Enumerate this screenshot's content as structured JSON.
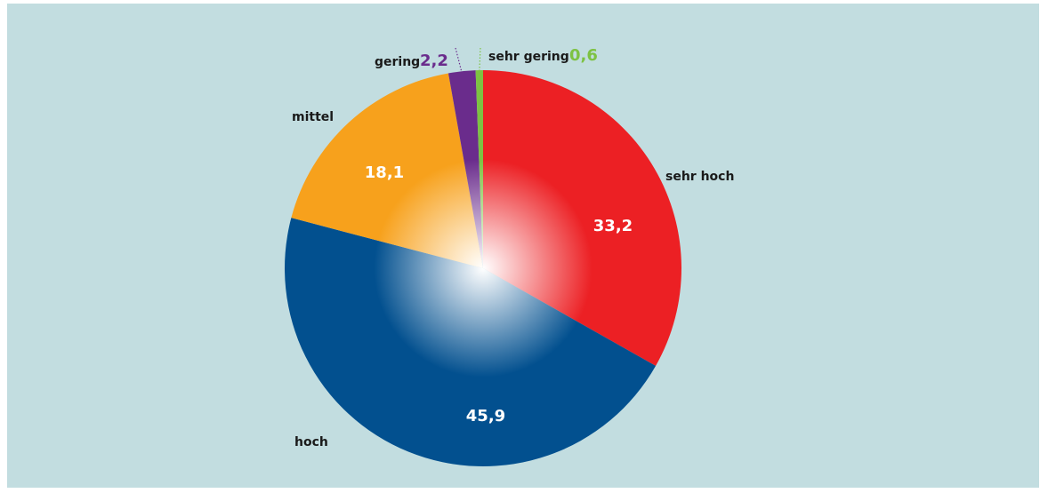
{
  "chart_data": {
    "type": "pie",
    "title": "",
    "slices": [
      {
        "name": "sehr hoch",
        "value": 33.2,
        "value_label": "33,2",
        "color": "#ec2024",
        "label_inside": true
      },
      {
        "name": "hoch",
        "value": 45.9,
        "value_label": "45,9",
        "color": "#02508f",
        "label_inside": true
      },
      {
        "name": "mittel",
        "value": 18.1,
        "value_label": "18,1",
        "color": "#f7a11c",
        "label_inside": true
      },
      {
        "name": "gering",
        "value": 2.2,
        "value_label": "2,2",
        "color": "#6a2c8c",
        "label_inside": false
      },
      {
        "name": "sehr gering",
        "value": 0.6,
        "value_label": "0,6",
        "color": "#7dc242",
        "label_inside": false
      }
    ],
    "start_angle_deg": 0,
    "direction": "clockwise",
    "background": "#c2dde0"
  }
}
